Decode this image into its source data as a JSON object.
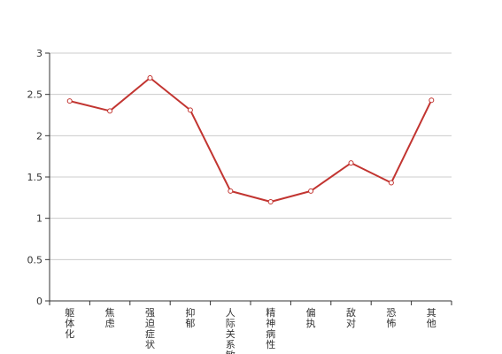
{
  "chart_data": {
    "type": "line",
    "categories": [
      "躯体化",
      "焦虑",
      "强迫症状",
      "抑郁",
      "人际关系敏感",
      "精神病性",
      "偏执",
      "敌对",
      "恐怖",
      "其他"
    ],
    "series": [
      {
        "values": [
          2.42,
          2.3,
          2.7,
          2.31,
          1.33,
          1.2,
          1.33,
          1.67,
          1.43,
          2.43
        ]
      }
    ],
    "ylim": [
      0,
      3
    ],
    "yticks": [
      0,
      0.5,
      1,
      1.5,
      2,
      2.5,
      3
    ],
    "ytick_labels": [
      "0",
      "0.5",
      "1",
      "1.5",
      "2",
      "2.5",
      "3"
    ],
    "grid": true,
    "line_color": "#c23531",
    "grid_color": "#cccccc",
    "axis_color": "#333333"
  }
}
